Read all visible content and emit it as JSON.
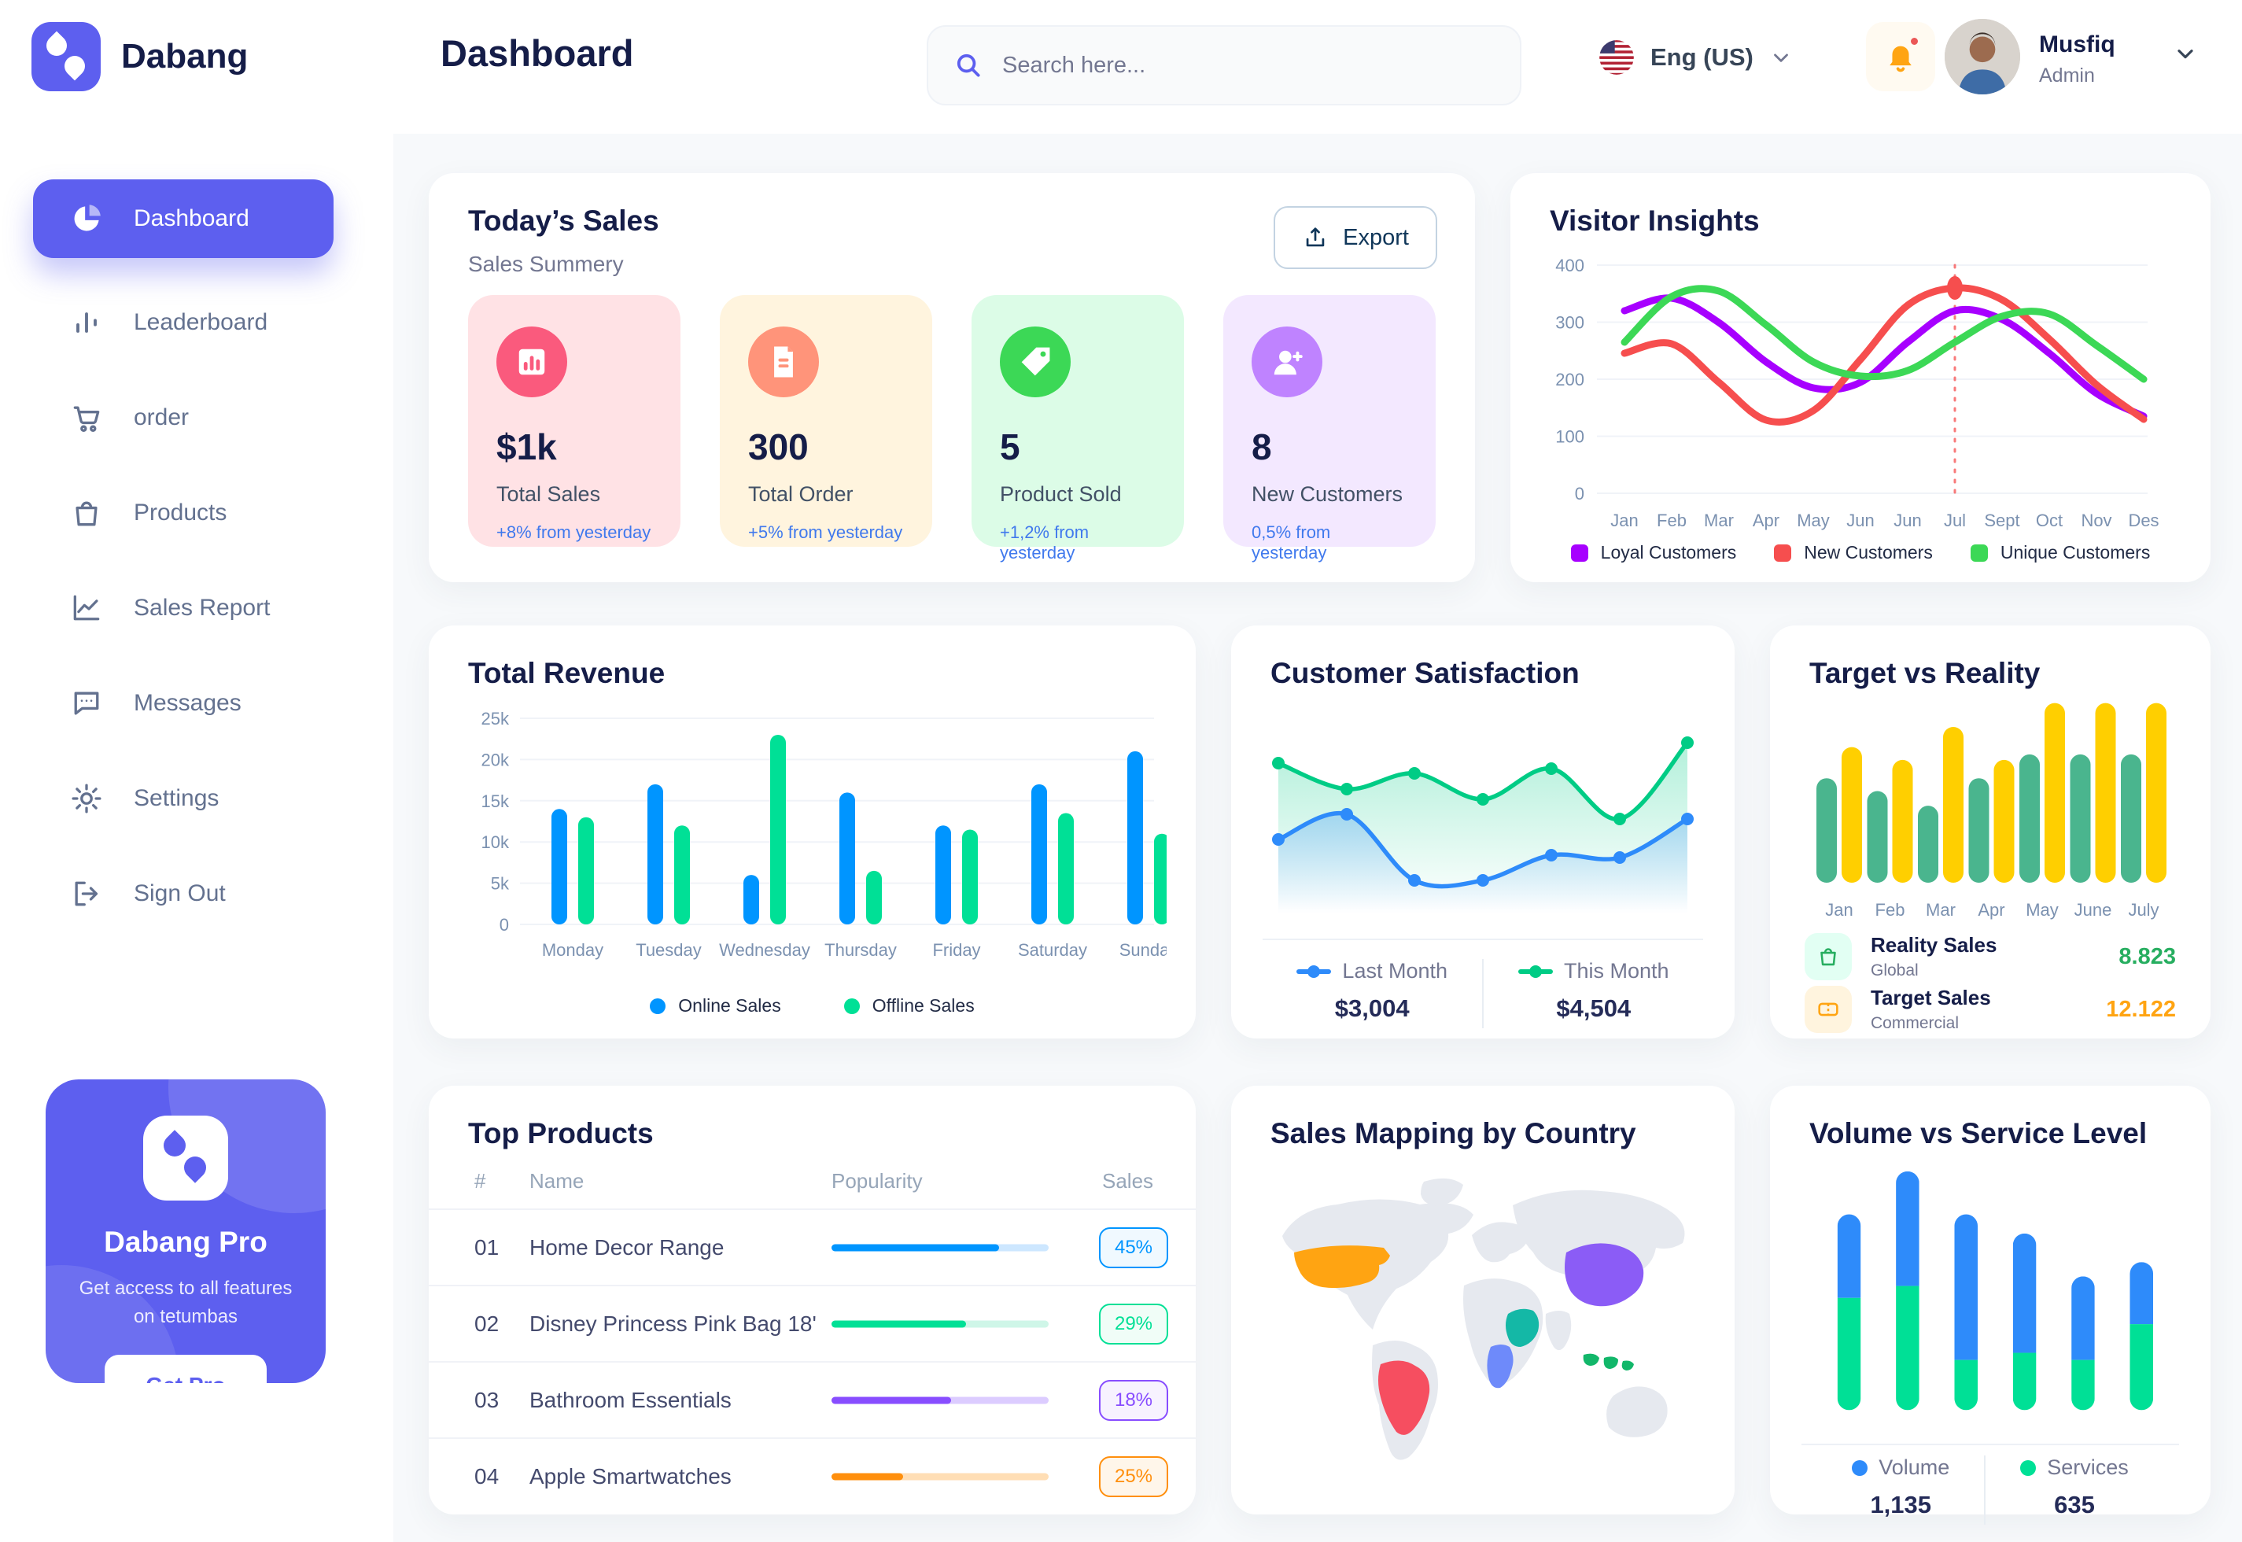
{
  "app": {
    "brand": "Dabang"
  },
  "colors": {
    "accent": "#5D5FEF",
    "page_bg": "#F7F9FB",
    "title": "#151D48",
    "muted": "#737791",
    "link_blue": "#4079ED"
  },
  "header": {
    "page_title": "Dashboard",
    "search_placeholder": "Search here...",
    "language": "Eng (US)",
    "user_name": "Musfiq",
    "user_role": "Admin"
  },
  "sidebar": {
    "items": [
      {
        "id": "dashboard",
        "label": "Dashboard",
        "icon": "pie",
        "active": true
      },
      {
        "id": "leaderboard",
        "label": "Leaderboard",
        "icon": "bars",
        "active": false
      },
      {
        "id": "order",
        "label": "order",
        "icon": "cart",
        "active": false
      },
      {
        "id": "products",
        "label": "Products",
        "icon": "bag",
        "active": false
      },
      {
        "id": "sales-report",
        "label": "Sales Report",
        "icon": "chart",
        "active": false
      },
      {
        "id": "messages",
        "label": "Messages",
        "icon": "message",
        "active": false
      },
      {
        "id": "settings",
        "label": "Settings",
        "icon": "gear",
        "active": false
      },
      {
        "id": "sign-out",
        "label": "Sign Out",
        "icon": "signout",
        "active": false
      }
    ],
    "pro": {
      "title": "Dabang Pro",
      "desc": "Get access to all features on tetumbas",
      "cta": "Get Pro"
    }
  },
  "todays_sales": {
    "title": "Today’s Sales",
    "subtitle": "Sales Summery",
    "export_label": "Export",
    "stats": [
      {
        "value": "$1k",
        "label": "Total Sales",
        "note": "+8% from yesterday",
        "bg": "#FFE2E5",
        "icon_bg": "#FA5A7D",
        "icon": "bar-chart"
      },
      {
        "value": "300",
        "label": "Total Order",
        "note": "+5% from yesterday",
        "bg": "#FFF4DE",
        "icon_bg": "#FF947A",
        "icon": "file"
      },
      {
        "value": "5",
        "label": "Product Sold",
        "note": "+1,2% from yesterday",
        "bg": "#DCFCE7",
        "icon_bg": "#3CD856",
        "icon": "tag"
      },
      {
        "value": "8",
        "label": "New Customers",
        "note": "0,5% from yesterday",
        "bg": "#F3E8FF",
        "icon_bg": "#BF83FF",
        "icon": "user-plus"
      }
    ]
  },
  "chart_data": [
    {
      "id": "visitor-insights",
      "type": "line",
      "title": "Visitor Insights",
      "categories": [
        "Jan",
        "Feb",
        "Mar",
        "Apr",
        "May",
        "Jun",
        "Jun",
        "Jul",
        "Sept",
        "Oct",
        "Nov",
        "Des"
      ],
      "ylim": [
        0,
        400
      ],
      "yticks": [
        0,
        100,
        200,
        300,
        400
      ],
      "grid": true,
      "legend_position": "bottom",
      "series": [
        {
          "name": "Loyal Customers",
          "color": "#A700FF",
          "values": [
            320,
            342,
            300,
            230,
            185,
            195,
            265,
            320,
            305,
            245,
            175,
            135
          ]
        },
        {
          "name": "New Customers",
          "color": "#F64E4E",
          "values": [
            245,
            262,
            195,
            128,
            145,
            235,
            330,
            360,
            340,
            270,
            190,
            130
          ]
        },
        {
          "name": "Unique Customers",
          "color": "#3CD856",
          "values": [
            265,
            345,
            355,
            295,
            230,
            205,
            215,
            265,
            310,
            315,
            260,
            200
          ]
        }
      ],
      "highlight": {
        "category_index": 7,
        "series": "New Customers"
      }
    },
    {
      "id": "total-revenue",
      "type": "bar",
      "title": "Total Revenue",
      "categories": [
        "Monday",
        "Tuesday",
        "Wednesday",
        "Thursday",
        "Friday",
        "Saturday",
        "Sunday"
      ],
      "ylim": [
        0,
        25
      ],
      "yticks": [
        "0",
        "5k",
        "10k",
        "15k",
        "20k",
        "25k"
      ],
      "unit": "k",
      "legend_position": "bottom",
      "series": [
        {
          "name": "Online Sales",
          "color": "#0095FF",
          "values": [
            14,
            17,
            6,
            16,
            12,
            17,
            21
          ]
        },
        {
          "name": "Offline Sales",
          "color": "#00E096",
          "values": [
            13,
            12,
            23,
            6.5,
            11.5,
            13.5,
            11
          ]
        }
      ]
    },
    {
      "id": "customer-satisfaction",
      "type": "area",
      "title": "Customer Satisfaction",
      "x": [
        1,
        2,
        3,
        4,
        5,
        6,
        7
      ],
      "legend_position": "bottom",
      "series": [
        {
          "name": "Last Month",
          "color": "#2E8BFA",
          "total": "$3,004",
          "values": [
            3.0,
            3.5,
            2.2,
            2.2,
            2.7,
            2.65,
            3.4
          ]
        },
        {
          "name": "This Month",
          "color": "#00CC85",
          "total": "$4,504",
          "values": [
            4.5,
            4.0,
            4.3,
            3.8,
            4.4,
            3.4,
            4.9
          ]
        }
      ]
    },
    {
      "id": "target-vs-reality",
      "type": "bar",
      "title": "Target vs Reality",
      "categories": [
        "Jan",
        "Feb",
        "Mar",
        "Apr",
        "May",
        "June",
        "July"
      ],
      "ylim": [
        0,
        10
      ],
      "legend_position": "bottom",
      "series": [
        {
          "name": "Reality Sales",
          "subtitle": "Global",
          "color": "#4AB58E",
          "total": "8.823",
          "total_color": "#27AE60",
          "icon": "bag-leg",
          "icon_bg": "#E2FFF3",
          "values": [
            5.7,
            5.0,
            4.2,
            5.7,
            7.0,
            7.0,
            7.0
          ]
        },
        {
          "name": "Target Sales",
          "subtitle": "Commercial",
          "color": "#FFCF00",
          "total": "12.122",
          "total_color": "#FFA412",
          "icon": "ticket",
          "icon_bg": "#FFF4DE",
          "values": [
            7.4,
            6.7,
            8.5,
            6.7,
            9.8,
            9.8,
            9.8
          ]
        }
      ]
    },
    {
      "id": "volume-vs-service",
      "type": "stacked-bar",
      "title": "Volume vs Service Level",
      "categories": [
        "1",
        "2",
        "3",
        "4",
        "5",
        "6"
      ],
      "legend_position": "bottom",
      "series": [
        {
          "name": "Volume",
          "color": "#2E8BFA",
          "total": "1,135",
          "values": [
            3.5,
            4.8,
            6.1,
            5.0,
            3.5,
            2.6
          ]
        },
        {
          "name": "Services",
          "color": "#00E096",
          "total": "635",
          "values": [
            4.7,
            5.2,
            2.1,
            2.4,
            2.1,
            3.6
          ]
        }
      ]
    }
  ],
  "top_products": {
    "title": "Top Products",
    "headers": [
      "#",
      "Name",
      "Popularity",
      "Sales"
    ],
    "rows": [
      {
        "num": "01",
        "name": "Home Decor Range",
        "popularity": 77,
        "sales": "45%",
        "color": "#0095FF",
        "track": "#CDE7FF",
        "badge_bg": "#F0F9FF"
      },
      {
        "num": "02",
        "name": "Disney Princess Pink Bag 18'",
        "popularity": 62,
        "sales": "29%",
        "color": "#00E096",
        "track": "#CFF6E8",
        "badge_bg": "#F0FDF7"
      },
      {
        "num": "03",
        "name": "Bathroom Essentials",
        "popularity": 55,
        "sales": "18%",
        "color": "#884DFF",
        "track": "#DCCCFF",
        "badge_bg": "#F7F2FF"
      },
      {
        "num": "04",
        "name": "Apple Smartwatches",
        "popularity": 33,
        "sales": "25%",
        "color": "#FF8F0D",
        "track": "#FFDEB5",
        "badge_bg": "#FFF6EA"
      }
    ]
  },
  "sales_mapping": {
    "title": "Sales Mapping by Country",
    "countries": [
      {
        "name": "United States",
        "color": "#FFA412"
      },
      {
        "name": "Brazil",
        "color": "#F64E60"
      },
      {
        "name": "DR Congo",
        "color": "#6E8AFA"
      },
      {
        "name": "Saudi Arabia",
        "color": "#14B8A6"
      },
      {
        "name": "China",
        "color": "#8B5CF6"
      },
      {
        "name": "Indonesia",
        "color": "#12B76A"
      }
    ]
  }
}
